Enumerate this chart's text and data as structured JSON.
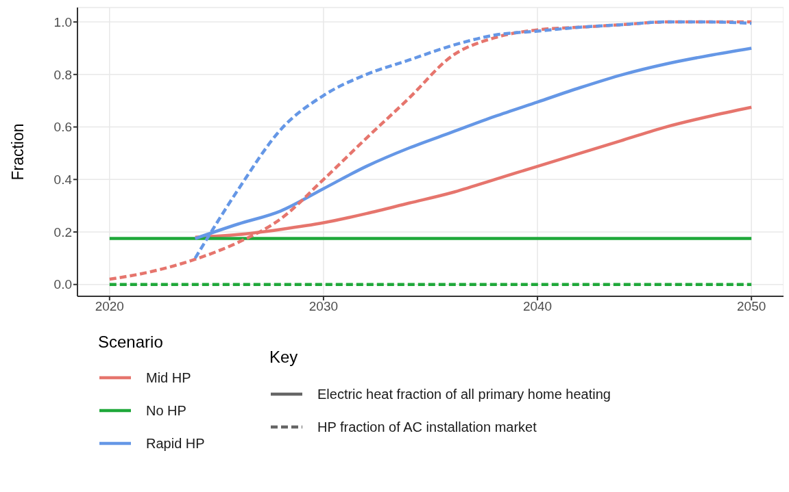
{
  "chart_data": {
    "type": "line",
    "ylabel": "Fraction",
    "legend_title": "Scenario",
    "legend": "bottom",
    "grid": true,
    "x": [
      2020,
      2022,
      2024,
      2026,
      2028,
      2030,
      2032,
      2034,
      2036,
      2038,
      2040,
      2042,
      2044,
      2046,
      2048,
      2050
    ],
    "xlim": [
      2018.5,
      2051.5
    ],
    "xticks": [
      2020,
      2030,
      2040,
      2050
    ],
    "ylim": [
      -0.045,
      1.055
    ],
    "yticks": [
      {
        "value": 0,
        "label": "0.0"
      },
      {
        "value": 0.2,
        "label": "0.2"
      },
      {
        "value": 0.4,
        "label": "0.4"
      },
      {
        "value": 0.6,
        "label": "0.6"
      },
      {
        "value": 0.8,
        "label": "0.8"
      },
      {
        "value": 1,
        "label": "1.0"
      }
    ],
    "annotations": [
      "Key",
      "Electric heat fraction of all primary home heating",
      "HP fraction of AC installation market"
    ],
    "series": [
      {
        "name": "Mid HP",
        "color": "#e6756d",
        "line_style": "solid",
        "values": [
          null,
          null,
          0.18,
          0.19,
          0.21,
          0.235,
          0.27,
          0.31,
          0.35,
          0.4,
          0.45,
          0.5,
          0.55,
          0.6,
          0.64,
          0.675
        ]
      },
      {
        "name": "No HP",
        "color": "#1fa83a",
        "line_style": "solid",
        "values": [
          0.175,
          0.175,
          0.175,
          0.175,
          0.175,
          0.175,
          0.175,
          0.175,
          0.175,
          0.175,
          0.175,
          0.175,
          0.175,
          0.175,
          0.175,
          0.175
        ]
      },
      {
        "name": "Rapid HP",
        "color": "#6597e6",
        "line_style": "solid",
        "values": [
          null,
          null,
          0.175,
          0.23,
          0.28,
          0.365,
          0.45,
          0.52,
          0.58,
          0.64,
          0.695,
          0.75,
          0.8,
          0.84,
          0.872,
          0.9
        ]
      },
      {
        "color": "#e6756d",
        "line_style": "dashed",
        "values": [
          0.02,
          0.05,
          0.096,
          0.16,
          0.25,
          0.4,
          0.557,
          0.71,
          0.87,
          0.94,
          0.97,
          0.98,
          0.99,
          1.0,
          1.0,
          1.0
        ]
      },
      {
        "color": "#1fa83a",
        "line_style": "dashed",
        "values": [
          0,
          0,
          0,
          0,
          0,
          0,
          0,
          0,
          0,
          0,
          0,
          0,
          0,
          0,
          0,
          0
        ]
      },
      {
        "color": "#6597e6",
        "line_style": "dashed",
        "values": [
          null,
          null,
          0.1,
          0.36,
          0.59,
          0.72,
          0.8,
          0.855,
          0.91,
          0.95,
          0.965,
          0.98,
          0.99,
          1.0,
          1.0,
          0.995
        ]
      }
    ]
  }
}
